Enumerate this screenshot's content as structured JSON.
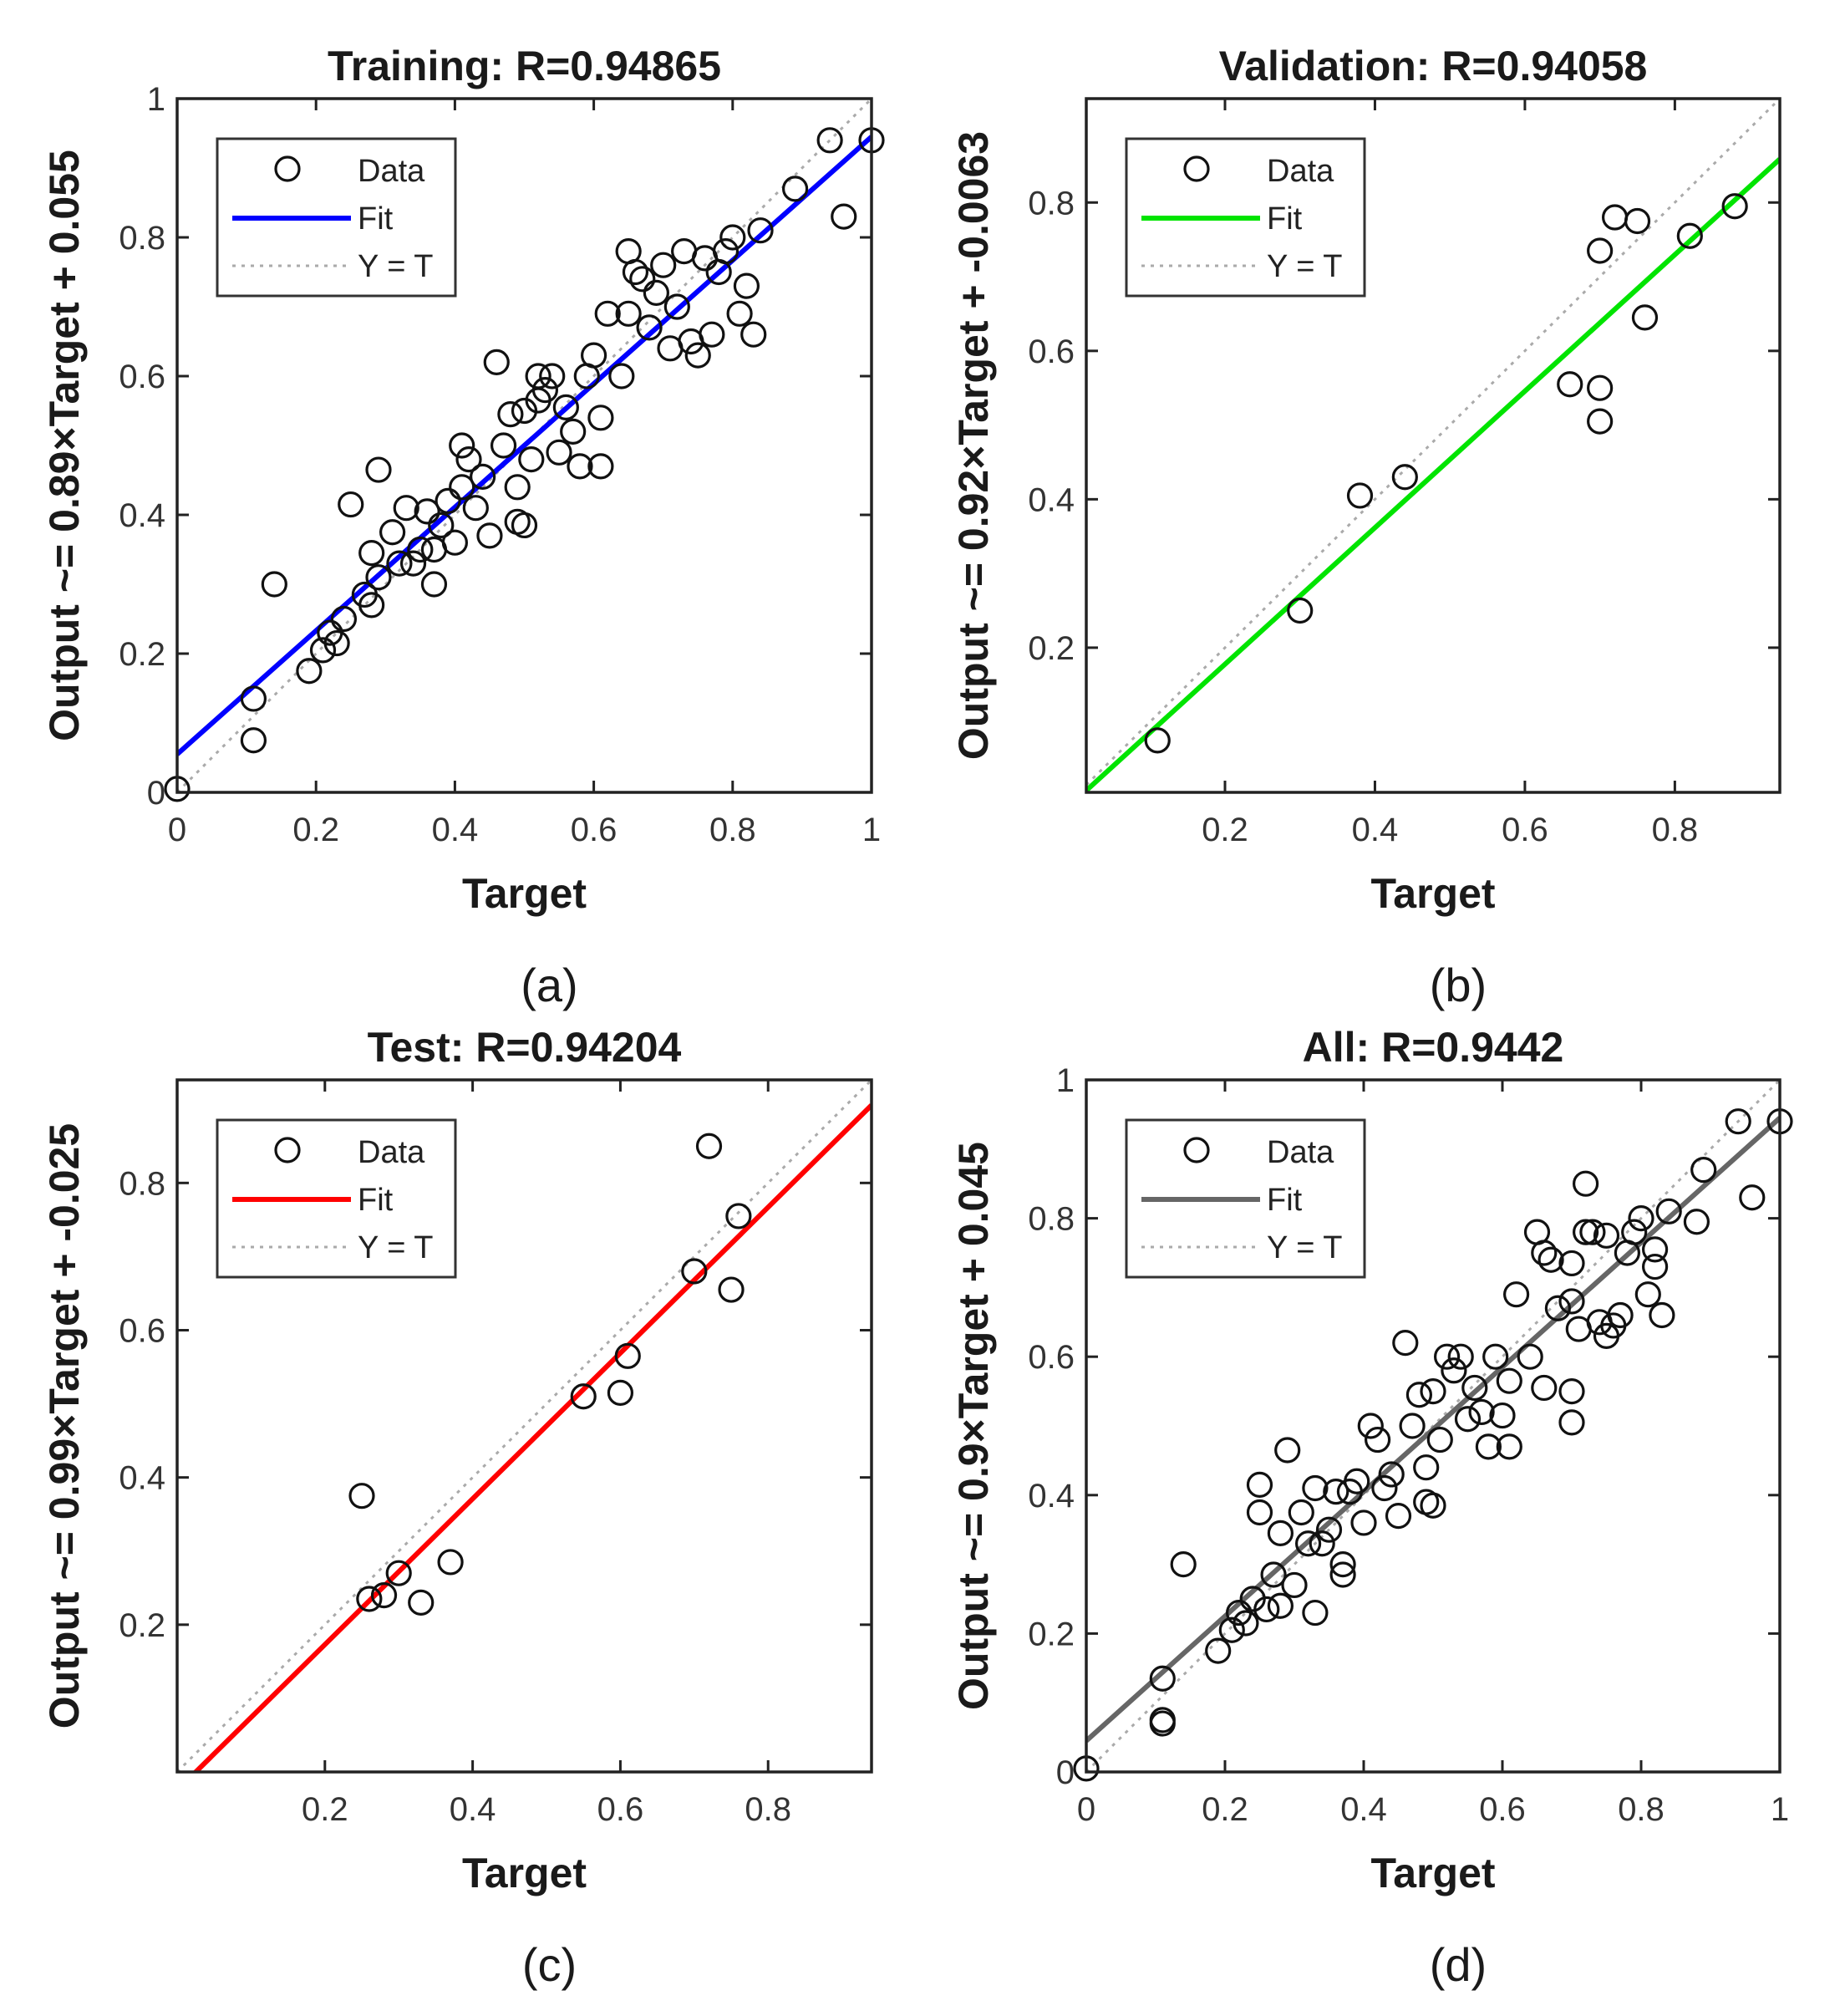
{
  "chart_data": [
    {
      "id": "a",
      "type": "scatter",
      "title": "Training: R=0.94865",
      "xlabel": "Target",
      "ylabel": "Output ~= 0.89×Target + 0.055",
      "caption": "(a)",
      "xlim": [
        0,
        1
      ],
      "ylim": [
        0,
        1
      ],
      "xticks": [
        0,
        0.2,
        0.4,
        0.6,
        0.8,
        1
      ],
      "yticks": [
        0,
        0.2,
        0.4,
        0.6,
        0.8,
        1
      ],
      "xtick_labels": [
        "0",
        "0.2",
        "0.4",
        "0.6",
        "0.8",
        "1"
      ],
      "ytick_labels": [
        "0",
        "0.2",
        "0.4",
        "0.6",
        "0.8",
        "1"
      ],
      "fit": {
        "slope": 0.89,
        "intercept": 0.055,
        "color": "#0000ff"
      },
      "legend": {
        "position": "top-left",
        "entries": [
          "Data",
          "Fit",
          "Y = T"
        ]
      },
      "points": [
        [
          0.0,
          0.005
        ],
        [
          0.11,
          0.135
        ],
        [
          0.11,
          0.075
        ],
        [
          0.14,
          0.3
        ],
        [
          0.19,
          0.175
        ],
        [
          0.21,
          0.205
        ],
        [
          0.22,
          0.23
        ],
        [
          0.23,
          0.215
        ],
        [
          0.24,
          0.25
        ],
        [
          0.25,
          0.415
        ],
        [
          0.27,
          0.285
        ],
        [
          0.28,
          0.345
        ],
        [
          0.28,
          0.27
        ],
        [
          0.29,
          0.465
        ],
        [
          0.29,
          0.31
        ],
        [
          0.31,
          0.375
        ],
        [
          0.32,
          0.33
        ],
        [
          0.33,
          0.41
        ],
        [
          0.34,
          0.33
        ],
        [
          0.35,
          0.35
        ],
        [
          0.36,
          0.405
        ],
        [
          0.37,
          0.3
        ],
        [
          0.37,
          0.35
        ],
        [
          0.38,
          0.385
        ],
        [
          0.39,
          0.42
        ],
        [
          0.4,
          0.36
        ],
        [
          0.41,
          0.5
        ],
        [
          0.41,
          0.44
        ],
        [
          0.42,
          0.48
        ],
        [
          0.43,
          0.41
        ],
        [
          0.44,
          0.455
        ],
        [
          0.45,
          0.37
        ],
        [
          0.46,
          0.62
        ],
        [
          0.47,
          0.5
        ],
        [
          0.48,
          0.545
        ],
        [
          0.49,
          0.44
        ],
        [
          0.49,
          0.39
        ],
        [
          0.5,
          0.385
        ],
        [
          0.5,
          0.55
        ],
        [
          0.51,
          0.48
        ],
        [
          0.52,
          0.6
        ],
        [
          0.52,
          0.565
        ],
        [
          0.53,
          0.58
        ],
        [
          0.54,
          0.6
        ],
        [
          0.55,
          0.49
        ],
        [
          0.56,
          0.555
        ],
        [
          0.57,
          0.52
        ],
        [
          0.58,
          0.47
        ],
        [
          0.59,
          0.6
        ],
        [
          0.6,
          0.63
        ],
        [
          0.61,
          0.54
        ],
        [
          0.61,
          0.47
        ],
        [
          0.62,
          0.69
        ],
        [
          0.64,
          0.6
        ],
        [
          0.65,
          0.78
        ],
        [
          0.65,
          0.69
        ],
        [
          0.66,
          0.75
        ],
        [
          0.67,
          0.74
        ],
        [
          0.68,
          0.67
        ],
        [
          0.69,
          0.72
        ],
        [
          0.7,
          0.76
        ],
        [
          0.71,
          0.64
        ],
        [
          0.72,
          0.7
        ],
        [
          0.73,
          0.78
        ],
        [
          0.74,
          0.65
        ],
        [
          0.75,
          0.63
        ],
        [
          0.76,
          0.77
        ],
        [
          0.77,
          0.66
        ],
        [
          0.78,
          0.75
        ],
        [
          0.79,
          0.78
        ],
        [
          0.8,
          0.8
        ],
        [
          0.81,
          0.69
        ],
        [
          0.82,
          0.73
        ],
        [
          0.83,
          0.66
        ],
        [
          0.84,
          0.81
        ],
        [
          0.89,
          0.87
        ],
        [
          0.94,
          0.94
        ],
        [
          0.96,
          0.83
        ],
        [
          1.0,
          0.94
        ]
      ]
    },
    {
      "id": "b",
      "type": "scatter",
      "title": "Validation: R=0.94058",
      "xlabel": "Target",
      "ylabel": "Output ~= 0.92×Target + -0.0063",
      "caption": "(b)",
      "xlim": [
        0.015,
        0.94
      ],
      "ylim": [
        0.005,
        0.94
      ],
      "xticks": [
        0.2,
        0.4,
        0.6,
        0.8
      ],
      "yticks": [
        0.2,
        0.4,
        0.6,
        0.8
      ],
      "xtick_labels": [
        "0.2",
        "0.4",
        "0.6",
        "0.8"
      ],
      "ytick_labels": [
        "0.2",
        "0.4",
        "0.6",
        "0.8"
      ],
      "fit": {
        "slope": 0.92,
        "intercept": -0.0063,
        "color": "#00e400"
      },
      "legend": {
        "position": "top-left",
        "entries": [
          "Data",
          "Fit",
          "Y = T"
        ]
      },
      "points": [
        [
          0.11,
          0.075
        ],
        [
          0.3,
          0.25
        ],
        [
          0.38,
          0.405
        ],
        [
          0.44,
          0.43
        ],
        [
          0.66,
          0.555
        ],
        [
          0.7,
          0.55
        ],
        [
          0.7,
          0.505
        ],
        [
          0.7,
          0.735
        ],
        [
          0.72,
          0.78
        ],
        [
          0.75,
          0.775
        ],
        [
          0.76,
          0.645
        ],
        [
          0.82,
          0.755
        ],
        [
          0.88,
          0.795
        ]
      ]
    },
    {
      "id": "c",
      "type": "scatter",
      "title": "Test: R=0.94204",
      "xlabel": "Target",
      "ylabel": "Output ~= 0.99×Target + -0.025",
      "caption": "(c)",
      "xlim": [
        0.0,
        0.94
      ],
      "ylim": [
        0.0,
        0.94
      ],
      "xticks": [
        0.2,
        0.4,
        0.6,
        0.8
      ],
      "yticks": [
        0.2,
        0.4,
        0.6,
        0.8
      ],
      "xtick_labels": [
        "0.2",
        "0.4",
        "0.6",
        "0.8"
      ],
      "ytick_labels": [
        "0.2",
        "0.4",
        "0.6",
        "0.8"
      ],
      "fit": {
        "slope": 0.99,
        "intercept": -0.025,
        "color": "#ff0000"
      },
      "legend": {
        "position": "top-left",
        "entries": [
          "Data",
          "Fit",
          "Y = T"
        ]
      },
      "points": [
        [
          0.25,
          0.375
        ],
        [
          0.26,
          0.235
        ],
        [
          0.28,
          0.24
        ],
        [
          0.3,
          0.27
        ],
        [
          0.33,
          0.23
        ],
        [
          0.37,
          0.285
        ],
        [
          0.55,
          0.51
        ],
        [
          0.6,
          0.515
        ],
        [
          0.61,
          0.565
        ],
        [
          0.7,
          0.68
        ],
        [
          0.72,
          0.85
        ],
        [
          0.75,
          0.655
        ],
        [
          0.76,
          0.755
        ]
      ]
    },
    {
      "id": "d",
      "type": "scatter",
      "title": "All: R=0.9442",
      "xlabel": "Target",
      "ylabel": "Output ~= 0.9×Target + 0.045",
      "caption": "(d)",
      "xlim": [
        0,
        1
      ],
      "ylim": [
        0,
        1
      ],
      "xticks": [
        0,
        0.2,
        0.4,
        0.6,
        0.8,
        1
      ],
      "yticks": [
        0,
        0.2,
        0.4,
        0.6,
        0.8,
        1
      ],
      "xtick_labels": [
        "0",
        "0.2",
        "0.4",
        "0.6",
        "0.8",
        "1"
      ],
      "ytick_labels": [
        "0",
        "0.2",
        "0.4",
        "0.6",
        "0.8",
        "1"
      ],
      "fit": {
        "slope": 0.9,
        "intercept": 0.045,
        "color": "#666666"
      },
      "legend": {
        "position": "top-left",
        "entries": [
          "Data",
          "Fit",
          "Y = T"
        ]
      },
      "points": [
        [
          0.0,
          0.005
        ],
        [
          0.11,
          0.135
        ],
        [
          0.11,
          0.075
        ],
        [
          0.11,
          0.07
        ],
        [
          0.14,
          0.3
        ],
        [
          0.19,
          0.175
        ],
        [
          0.21,
          0.205
        ],
        [
          0.22,
          0.23
        ],
        [
          0.23,
          0.215
        ],
        [
          0.24,
          0.25
        ],
        [
          0.25,
          0.415
        ],
        [
          0.25,
          0.375
        ],
        [
          0.26,
          0.235
        ],
        [
          0.27,
          0.285
        ],
        [
          0.28,
          0.345
        ],
        [
          0.28,
          0.24
        ],
        [
          0.29,
          0.465
        ],
        [
          0.3,
          0.27
        ],
        [
          0.31,
          0.375
        ],
        [
          0.32,
          0.33
        ],
        [
          0.33,
          0.23
        ],
        [
          0.33,
          0.41
        ],
        [
          0.34,
          0.33
        ],
        [
          0.35,
          0.35
        ],
        [
          0.36,
          0.405
        ],
        [
          0.37,
          0.3
        ],
        [
          0.37,
          0.285
        ],
        [
          0.38,
          0.405
        ],
        [
          0.39,
          0.42
        ],
        [
          0.4,
          0.36
        ],
        [
          0.41,
          0.5
        ],
        [
          0.42,
          0.48
        ],
        [
          0.43,
          0.41
        ],
        [
          0.44,
          0.43
        ],
        [
          0.45,
          0.37
        ],
        [
          0.46,
          0.62
        ],
        [
          0.47,
          0.5
        ],
        [
          0.48,
          0.545
        ],
        [
          0.49,
          0.44
        ],
        [
          0.49,
          0.39
        ],
        [
          0.5,
          0.385
        ],
        [
          0.5,
          0.55
        ],
        [
          0.51,
          0.48
        ],
        [
          0.52,
          0.6
        ],
        [
          0.53,
          0.58
        ],
        [
          0.54,
          0.6
        ],
        [
          0.55,
          0.51
        ],
        [
          0.56,
          0.555
        ],
        [
          0.57,
          0.52
        ],
        [
          0.58,
          0.47
        ],
        [
          0.59,
          0.6
        ],
        [
          0.6,
          0.515
        ],
        [
          0.61,
          0.565
        ],
        [
          0.61,
          0.47
        ],
        [
          0.62,
          0.69
        ],
        [
          0.64,
          0.6
        ],
        [
          0.65,
          0.78
        ],
        [
          0.66,
          0.555
        ],
        [
          0.66,
          0.75
        ],
        [
          0.67,
          0.74
        ],
        [
          0.68,
          0.67
        ],
        [
          0.7,
          0.55
        ],
        [
          0.7,
          0.505
        ],
        [
          0.7,
          0.735
        ],
        [
          0.7,
          0.68
        ],
        [
          0.71,
          0.64
        ],
        [
          0.72,
          0.78
        ],
        [
          0.72,
          0.85
        ],
        [
          0.73,
          0.78
        ],
        [
          0.74,
          0.65
        ],
        [
          0.75,
          0.775
        ],
        [
          0.75,
          0.63
        ],
        [
          0.76,
          0.645
        ],
        [
          0.77,
          0.66
        ],
        [
          0.78,
          0.75
        ],
        [
          0.79,
          0.78
        ],
        [
          0.8,
          0.8
        ],
        [
          0.81,
          0.69
        ],
        [
          0.82,
          0.755
        ],
        [
          0.82,
          0.73
        ],
        [
          0.83,
          0.66
        ],
        [
          0.84,
          0.81
        ],
        [
          0.88,
          0.795
        ],
        [
          0.89,
          0.87
        ],
        [
          0.94,
          0.94
        ],
        [
          0.96,
          0.83
        ],
        [
          1.0,
          0.94
        ]
      ]
    }
  ]
}
